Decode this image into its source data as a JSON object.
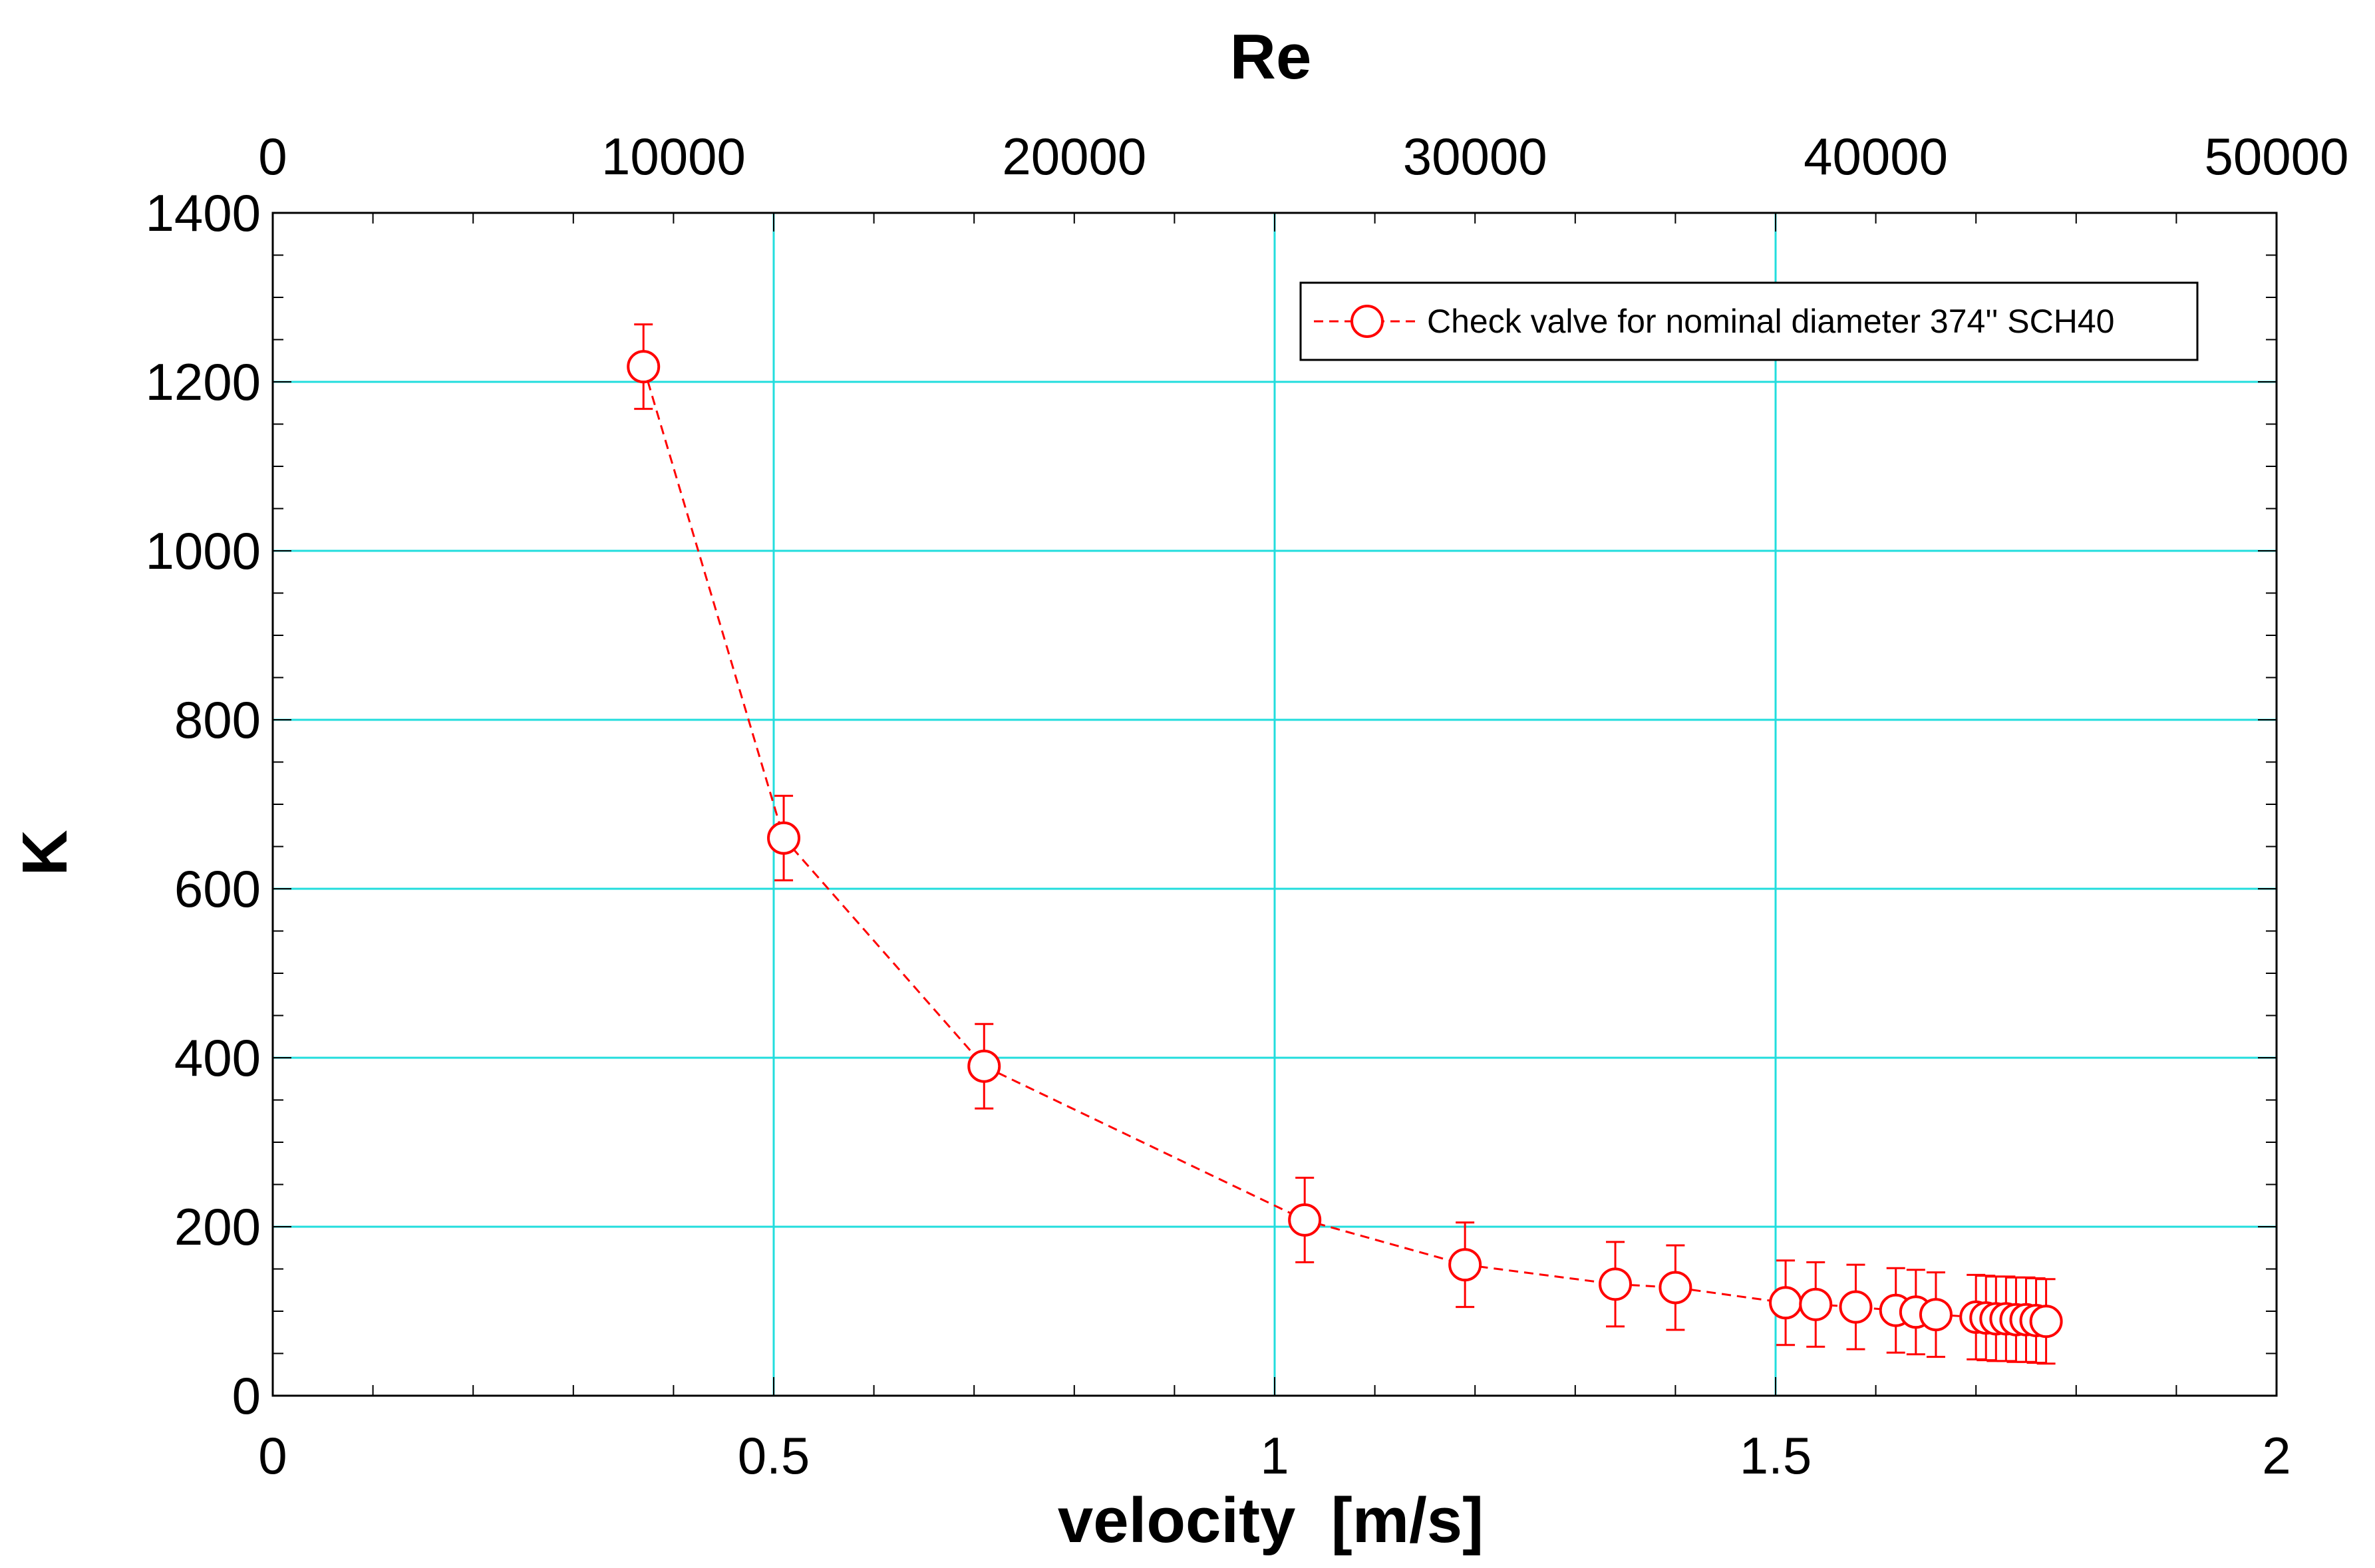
{
  "chart_data": {
    "type": "scatter",
    "title": "",
    "xlabel": "velocity  [m/s]",
    "ylabel": "K",
    "x2label": "Re",
    "xlim": [
      0,
      2
    ],
    "ylim": [
      0,
      1400
    ],
    "x2lim": [
      0,
      50000
    ],
    "xticks": [
      0,
      0.5,
      1,
      1.5,
      2
    ],
    "xtick_labels": [
      "0",
      "0.5",
      "1",
      "1.5",
      "2"
    ],
    "x2ticks": [
      0,
      10000,
      20000,
      30000,
      40000,
      50000
    ],
    "x2tick_labels": [
      "0",
      "10000",
      "20000",
      "30000",
      "40000",
      "50000"
    ],
    "yticks": [
      0,
      200,
      400,
      600,
      800,
      1000,
      1200,
      1400
    ],
    "ytick_labels": [
      "0",
      "200",
      "400",
      "600",
      "800",
      "1000",
      "1200",
      "1400"
    ],
    "xgrid_at": [
      0.5,
      1,
      1.5
    ],
    "ygrid_at": [
      200,
      400,
      600,
      800,
      1000,
      1200
    ],
    "grid_color": "#22dddd",
    "series_color": "#ff0000",
    "legend_position": "top-right",
    "series": [
      {
        "name": "Check valve for nominal diameter 374'' SCH40",
        "marker": "open-circle",
        "line": "dashed",
        "x": [
          0.37,
          0.51,
          0.71,
          1.03,
          1.19,
          1.34,
          1.4,
          1.51,
          1.54,
          1.58,
          1.62,
          1.64,
          1.66,
          1.7,
          1.71,
          1.72,
          1.73,
          1.74,
          1.75,
          1.76,
          1.77
        ],
        "y": [
          1218,
          660,
          390,
          208,
          155,
          132,
          128,
          110,
          108,
          105,
          101,
          99,
          96,
          93,
          92,
          91,
          91,
          90,
          90,
          89,
          88
        ],
        "error": [
          50,
          50,
          50,
          50,
          50,
          50,
          50,
          50,
          50,
          50,
          50,
          50,
          50,
          50,
          50,
          50,
          50,
          50,
          50,
          50,
          50
        ]
      }
    ]
  }
}
